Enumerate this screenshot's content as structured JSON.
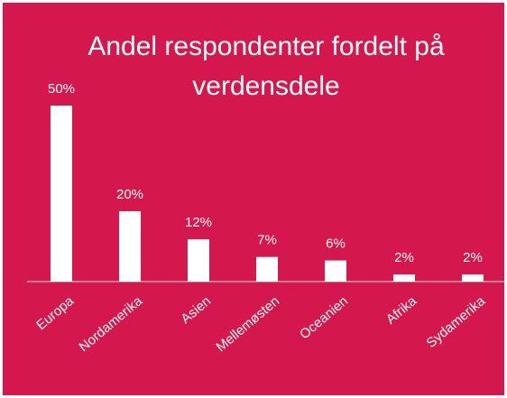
{
  "chart_data": {
    "type": "bar",
    "title": "Andel respondenter fordelt på verdensdele",
    "categories": [
      "Europa",
      "Nordamerika",
      "Asien",
      "Mellemøsten",
      "Oceanien",
      "Afrika",
      "Sydamerika"
    ],
    "values": [
      50,
      20,
      12,
      7,
      6,
      2,
      2
    ],
    "value_labels": [
      "50%",
      "20%",
      "12%",
      "7%",
      "6%",
      "2%",
      "2%"
    ],
    "color": "#ffffff"
  }
}
